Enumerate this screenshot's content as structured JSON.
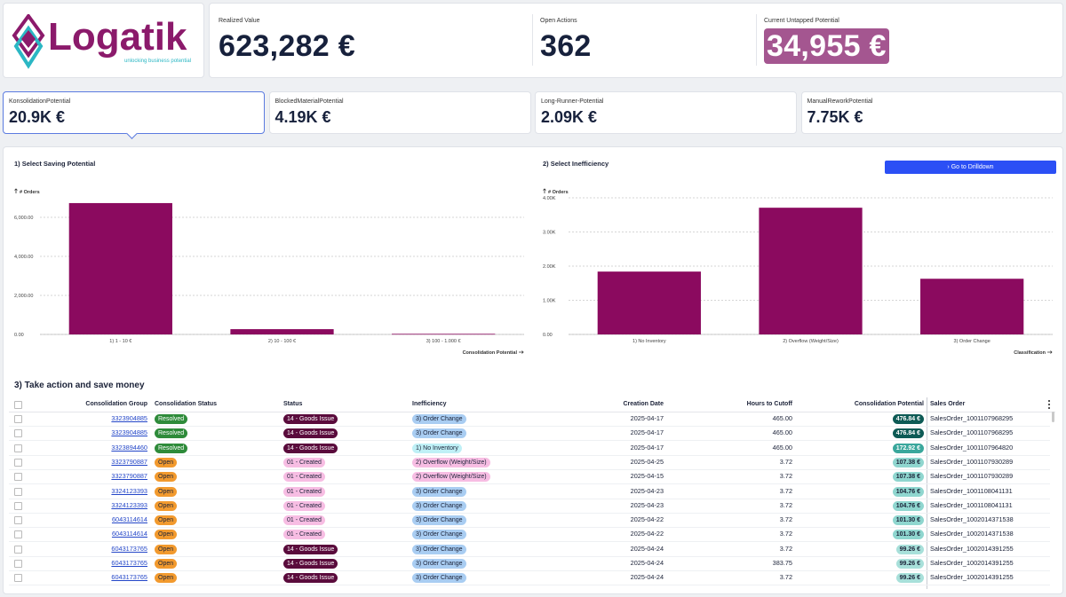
{
  "logo": {
    "name": "Logatik",
    "tagline": "unlocking business potential"
  },
  "kpis": [
    {
      "label": "Realized Value",
      "value": "623,282 €"
    },
    {
      "label": "Open Actions",
      "value": "362"
    },
    {
      "label": "Current Untapped Potential",
      "value": "34,955 €"
    }
  ],
  "tiles": [
    {
      "label": "KonsolidationPotential",
      "value": "20.9K €"
    },
    {
      "label": "BlockedMaterialPotential",
      "value": "4.19K €"
    },
    {
      "label": "Long-Runner-Potential",
      "value": "2.09K €"
    },
    {
      "label": "ManualReworkPotential",
      "value": "7.75K €"
    }
  ],
  "charts": [
    {
      "type": "bar",
      "title": "1) Select Saving Potential",
      "y_label": "# Orders",
      "x_label": "Consolidation Potential",
      "categories": [
        "1) 1 - 10 €",
        "2) 10 - 100 €",
        "3) 100 - 1.000 €"
      ],
      "values": [
        6730,
        270,
        30
      ],
      "color": "#8b0a5f",
      "ylim": [
        0,
        7000
      ],
      "yticks": [
        {
          "value": 0,
          "label": "0.00"
        },
        {
          "value": 2000,
          "label": "2,000.00"
        },
        {
          "value": 4000,
          "label": "4,000.00"
        },
        {
          "value": 6000,
          "label": "6,000.00"
        }
      ],
      "grid": true
    },
    {
      "type": "bar",
      "title": "2) Select Inefficiency",
      "button": "Go to Drilldown",
      "y_label": "# Orders",
      "x_label": "Classification",
      "categories": [
        "1) No Inventory",
        "2) Overflow (Weight/Size)",
        "3) Order Change"
      ],
      "values": [
        1840,
        3710,
        1630
      ],
      "color": "#8b0a5f",
      "ylim": [
        0,
        4000
      ],
      "yticks": [
        {
          "value": 0,
          "label": "0.00"
        },
        {
          "value": 1000,
          "label": "1.00K"
        },
        {
          "value": 2000,
          "label": "2.00K"
        },
        {
          "value": 3000,
          "label": "3.00K"
        },
        {
          "value": 4000,
          "label": "4.00K"
        }
      ],
      "grid": true
    }
  ],
  "table": {
    "title": "3) Take action and save money",
    "columns": [
      "Consolidation Group",
      "Consolidation Status",
      "Status",
      "Inefficiency",
      "Creation Date",
      "Hours to Cutoff",
      "Consolidation Potential",
      "Sales Order"
    ],
    "rows": [
      [
        "3323904885",
        "Resolved",
        "14 - Goods Issue",
        "3) Order Change",
        "2025-04-17",
        "465.00",
        "476.84 €",
        "SalesOrder_1001107968295"
      ],
      [
        "3323904885",
        "Resolved",
        "14 - Goods Issue",
        "3) Order Change",
        "2025-04-17",
        "465.00",
        "476.84 €",
        "SalesOrder_1001107968295"
      ],
      [
        "3323894460",
        "Resolved",
        "14 - Goods Issue",
        "1) No Inventory",
        "2025-04-17",
        "465.00",
        "172.92 €",
        "SalesOrder_1001107964820"
      ],
      [
        "3323790887",
        "Open",
        "01 - Created",
        "2) Overflow (Weight/Size)",
        "2025-04-25",
        "3.72",
        "107.38 €",
        "SalesOrder_1001107930289"
      ],
      [
        "3323790887",
        "Open",
        "01 - Created",
        "2) Overflow (Weight/Size)",
        "2025-04-15",
        "3.72",
        "107.38 €",
        "SalesOrder_1001107930289"
      ],
      [
        "3324123393",
        "Open",
        "01 - Created",
        "3) Order Change",
        "2025-04-23",
        "3.72",
        "104.76 €",
        "SalesOrder_1001108041131"
      ],
      [
        "3324123393",
        "Open",
        "01 - Created",
        "3) Order Change",
        "2025-04-23",
        "3.72",
        "104.76 €",
        "SalesOrder_1001108041131"
      ],
      [
        "6043114614",
        "Open",
        "01 - Created",
        "3) Order Change",
        "2025-04-22",
        "3.72",
        "101.30 €",
        "SalesOrder_1002014371538"
      ],
      [
        "6043114614",
        "Open",
        "01 - Created",
        "3) Order Change",
        "2025-04-22",
        "3.72",
        "101.30 €",
        "SalesOrder_1002014371538"
      ],
      [
        "6043173765",
        "Open",
        "14 - Goods Issue",
        "3) Order Change",
        "2025-04-24",
        "3.72",
        "99.26 €",
        "SalesOrder_1002014391255"
      ],
      [
        "6043173765",
        "Open",
        "14 - Goods Issue",
        "3) Order Change",
        "2025-04-24",
        "383.75",
        "99.26 €",
        "SalesOrder_1002014391255"
      ],
      [
        "6043173765",
        "Open",
        "14 - Goods Issue",
        "3) Order Change",
        "2025-04-24",
        "3.72",
        "99.26 €",
        "SalesOrder_1002014391255"
      ]
    ],
    "badge_colors": {
      "Resolved": "#2e8b3a",
      "Open": "#f29a2e",
      "14 - Goods Issue": "#5a0b3c",
      "01 - Created": "#f7bde3",
      "3) Order Change": "#a9cdf2",
      "1) No Inventory": "#bff0f6",
      "2) Overflow (Weight/Size)": "#f7bde3"
    },
    "potential_colors": [
      "#0d5a55",
      "#0d5a55",
      "#3aa79c",
      "#8fd6cf",
      "#8fd6cf",
      "#8fd6cf",
      "#8fd6cf",
      "#8fd6cf",
      "#8fd6cf",
      "#a8e0da",
      "#a8e0da",
      "#a8e0da"
    ]
  }
}
